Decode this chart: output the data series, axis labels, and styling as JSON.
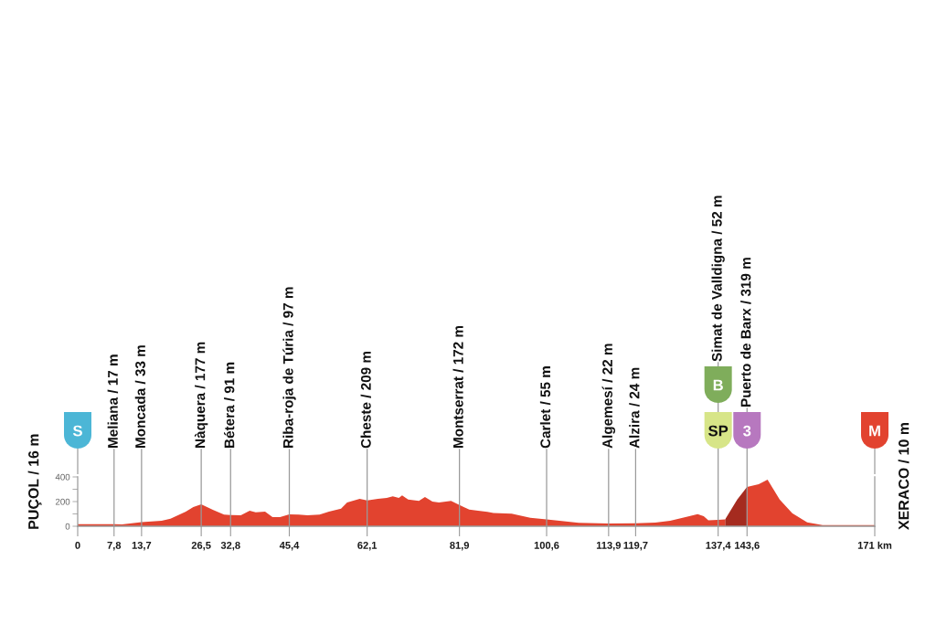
{
  "chart_data": {
    "type": "area",
    "color": "#e2432f",
    "x": [
      0,
      7.8,
      9.5,
      13.7,
      18.0,
      19.9,
      23.2,
      24.8,
      26.5,
      29.1,
      31.4,
      32.8,
      35.0,
      36.9,
      38.2,
      40.2,
      41.8,
      43.4,
      45.4,
      47.4,
      49.3,
      51.9,
      53.9,
      56.5,
      57.8,
      60.5,
      62.1,
      64.4,
      66.3,
      67.6,
      68.9,
      69.6,
      70.9,
      73.2,
      74.5,
      76.1,
      77.5,
      80.1,
      81.9,
      84.0,
      85.9,
      87.9,
      89.2,
      93.1,
      97.1,
      100.6,
      107.5,
      113.9,
      119.7,
      123.9,
      127.1,
      130.4,
      133.0,
      134.3,
      135.3,
      137.4,
      138.9,
      141.5,
      143.6,
      146.1,
      148.0,
      150.6,
      153.3,
      156.5,
      159.8,
      171
    ],
    "values": [
      16,
      17,
      15,
      33,
      44,
      62,
      118,
      155,
      177,
      131,
      94,
      91,
      89,
      126,
      113,
      118,
      74,
      74,
      97,
      94,
      89,
      94,
      118,
      143,
      192,
      222,
      209,
      222,
      230,
      242,
      230,
      250,
      217,
      205,
      237,
      200,
      192,
      205,
      172,
      135,
      126,
      116,
      108,
      101,
      69,
      55,
      27,
      22,
      24,
      30,
      44,
      74,
      99,
      81,
      49,
      52,
      55,
      217,
      319,
      341,
      378,
      217,
      106,
      32,
      10,
      10
    ],
    "xlim": [
      0,
      171
    ],
    "xticks": [
      0,
      {
        "value": 7.8,
        "label": "7,8"
      },
      {
        "value": 13.7,
        "label": "13,7"
      },
      {
        "value": 26.5,
        "label": "26,5"
      },
      {
        "value": 32.8,
        "label": "32,8"
      },
      {
        "value": 45.4,
        "label": "45,4"
      },
      {
        "value": 62.1,
        "label": "62,1"
      },
      {
        "value": 81.9,
        "label": "81,9"
      },
      {
        "value": 100.6,
        "label": "100,6"
      },
      {
        "value": 113.9,
        "label": "113,9"
      },
      {
        "value": 119.7,
        "label": "119,7"
      },
      {
        "value": 137.4,
        "label": "137,4"
      },
      {
        "value": 143.6,
        "label": "143,6"
      },
      {
        "value": 171,
        "label": "171 km"
      }
    ],
    "ylim": [
      0,
      400
    ],
    "yticks": [
      0,
      {
        "value": 100,
        "label": null
      },
      200,
      {
        "value": 300,
        "label": null
      },
      400
    ],
    "bands": [
      {
        "axis": "x",
        "from": 138.9,
        "to": 143.6,
        "color": "#a52b1f"
      }
    ],
    "ref_lines": [
      {
        "axis": "x",
        "value": 7.8,
        "label": "Meliana / 17 m"
      },
      {
        "axis": "x",
        "value": 13.7,
        "label": "Moncada / 33 m"
      },
      {
        "axis": "x",
        "value": 26.5,
        "label": "Nàquera / 177 m"
      },
      {
        "axis": "x",
        "value": 32.8,
        "label": "Bétera / 91 m"
      },
      {
        "axis": "x",
        "value": 45.4,
        "label": "Riba-roja de Túria / 97 m"
      },
      {
        "axis": "x",
        "value": 62.1,
        "label": "Cheste / 209 m"
      },
      {
        "axis": "x",
        "value": 81.9,
        "label": "Montserrat / 172 m"
      },
      {
        "axis": "x",
        "value": 100.6,
        "label": "Carlet / 55 m"
      },
      {
        "axis": "x",
        "value": 113.9,
        "label": "Algemesí / 22 m"
      },
      {
        "axis": "x",
        "value": 119.7,
        "label": "Alzira / 24 m"
      },
      {
        "axis": "x",
        "value": 137.4,
        "label": "Simat de Valldigna / 52 m"
      },
      {
        "axis": "x",
        "value": 143.6,
        "label": "Puerto de Barx / 319 m"
      }
    ],
    "annotations": [
      {
        "text": "PUÇOL / 16 m",
        "x": 0,
        "y": 16
      },
      {
        "text": "XERACO / 10 m",
        "x": 171,
        "y": 10
      },
      "S",
      "SP",
      "B",
      "3",
      "M"
    ]
  }
}
